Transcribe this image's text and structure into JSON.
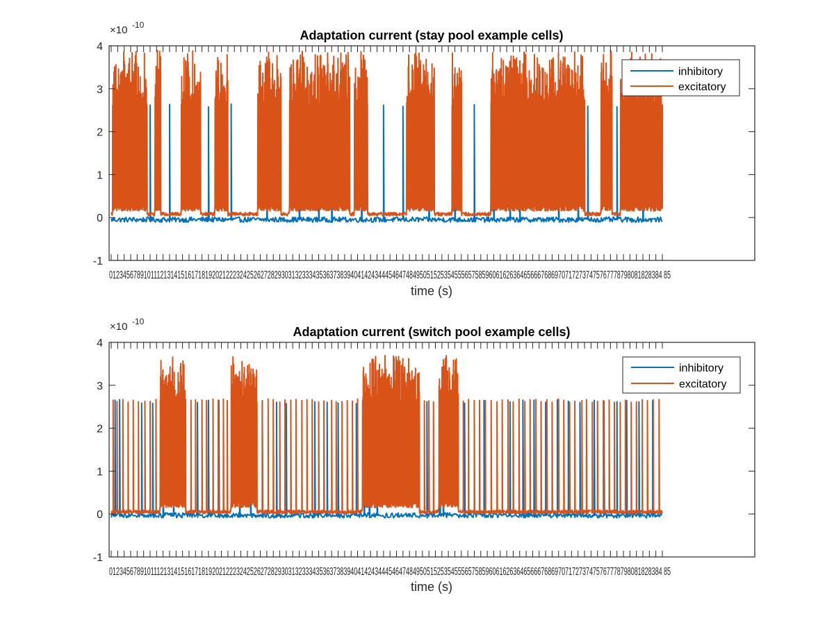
{
  "chart_data": [
    {
      "type": "line",
      "title": "Adaptation current (stay pool example cells)",
      "xlabel": "time (s)",
      "ylabel": "",
      "y_exponent_label": "×10",
      "y_exponent": "-10",
      "ylim": [
        -1,
        4
      ],
      "yticks": [
        "-1",
        "0",
        "1",
        "2",
        "3",
        "4"
      ],
      "x_tick_count": 86,
      "x_tick_label_run": "0123456789101112131415161718192021222324252627282930313233343536373839404142434445464748495051525354555657585960616263646566676869707172737475767778798081828384 85",
      "legend": {
        "position": "top-right",
        "entries": [
          "inhibitory",
          "excitatory"
        ]
      },
      "grid": false,
      "series": [
        {
          "name": "inhibitory",
          "color": "#0072bd",
          "baseline": -0.05,
          "spike_peak": 2.62,
          "spike_times": [
            6,
            9,
            15,
            18.5,
            24,
            29,
            32,
            34,
            38.6,
            42,
            45,
            49,
            53,
            56,
            59,
            61.5,
            63,
            69,
            72,
            73.5,
            78,
            82
          ]
        },
        {
          "name": "excitatory",
          "color": "#d95319",
          "baseline": 0.08,
          "active_intervals": [
            [
              0.2,
              5.5
            ],
            [
              6.7,
              7.6
            ],
            [
              10.8,
              13.8
            ],
            [
              16,
              18
            ],
            [
              22.6,
              26.2
            ],
            [
              27.5,
              36.8
            ],
            [
              37.5,
              39.5
            ],
            [
              45.5,
              49.8
            ],
            [
              52.5,
              54
            ],
            [
              58.5,
              73
            ],
            [
              75.5,
              77.2
            ],
            [
              78.5,
              85
            ]
          ],
          "peak_range": [
            2.6,
            3.9
          ],
          "max_value": 3.9
        }
      ]
    },
    {
      "type": "line",
      "title": "Adaptation current (switch pool example cells)",
      "xlabel": "time (s)",
      "ylabel": "",
      "y_exponent_label": "×10",
      "y_exponent": "-10",
      "ylim": [
        -1,
        4
      ],
      "yticks": [
        "-1",
        "0",
        "1",
        "2",
        "3",
        "4"
      ],
      "x_tick_count": 86,
      "x_tick_label_run": "0123456789101112131415161718192021222324252627282930313233343536373839404142434445464748495051525354555657585960616263646566676869707172737475767778798081828384 85",
      "legend": {
        "position": "top-right",
        "entries": [
          "inhibitory",
          "excitatory"
        ]
      },
      "grid": false,
      "series": [
        {
          "name": "inhibitory",
          "color": "#0072bd",
          "baseline": -0.03,
          "spike_peak": 2.62,
          "spike_times": [
            0.6,
            1.3,
            4.7,
            6.4,
            8,
            9.6,
            13.3,
            15,
            16.6,
            19.8,
            21.5,
            23.3,
            25.5,
            27,
            31.4,
            33.3,
            35,
            37.8,
            39,
            39.8,
            41,
            48.7,
            50.7,
            51.2,
            54.5,
            57.5,
            61.5,
            63.5,
            65.2,
            67,
            68.8,
            70.5,
            72.3,
            74.5,
            76,
            78,
            79.5,
            81.4,
            83.5
          ]
        },
        {
          "name": "excitatory",
          "color": "#d95319",
          "baseline": 0.05,
          "active_intervals": [
            [
              7.5,
              11.5
            ],
            [
              18.5,
              22.5
            ],
            [
              38.7,
              47.5
            ],
            [
              50.5,
              53.5
            ]
          ],
          "peak_range": [
            2.6,
            3.7
          ],
          "max_value": 3.7,
          "spike_times": [
            0.3,
            0.9,
            1.8,
            2.6,
            3.4,
            4.2,
            5.2,
            6,
            6.9,
            12.3,
            13,
            14,
            14.7,
            15.7,
            16.5,
            17.3,
            17.9,
            23.3,
            24.2,
            25,
            26,
            26.8,
            27.7,
            28.5,
            29.4,
            30.2,
            31,
            32,
            32.8,
            34,
            34.7,
            35.6,
            36.4,
            37.2,
            38,
            48.3,
            49,
            49.7,
            54.3,
            55.1,
            56,
            56.8,
            57.7,
            58.6,
            59.5,
            60.3,
            61.2,
            62,
            62.9,
            63.8,
            64.6,
            65.5,
            66.3,
            67.2,
            68,
            69,
            69.8,
            70.7,
            71.5,
            72.6,
            73.3,
            74.2,
            75,
            75.9,
            76.8,
            77.6,
            78.5,
            79.3,
            80.2,
            81,
            81.9,
            82.7,
            83.6,
            84.5
          ]
        }
      ]
    }
  ]
}
